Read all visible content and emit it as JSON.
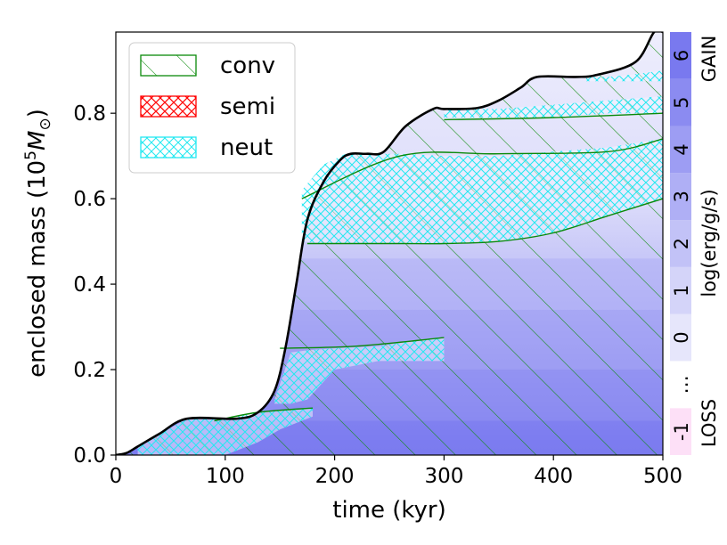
{
  "chart_data": {
    "type": "area",
    "xlabel": "time (kyr)",
    "ylabel_prefix": "enclosed mass (10",
    "ylabel_exp": "5",
    "ylabel_unit": "M",
    "ylabel_sub": "⊙",
    "ylabel_suffix": ")",
    "xlim": [
      0,
      500
    ],
    "ylim": [
      0,
      0.99
    ],
    "x_ticks": [
      0,
      100,
      200,
      300,
      400,
      500
    ],
    "x_tick_labels": [
      "0",
      "100",
      "200",
      "300",
      "400",
      "500"
    ],
    "y_ticks": [
      0.0,
      0.2,
      0.4,
      0.6,
      0.8
    ],
    "y_tick_labels": [
      "0.0",
      "0.2",
      "0.4",
      "0.6",
      "0.8"
    ],
    "legend": {
      "placement": "top-left",
      "entries": [
        {
          "label": "conv",
          "color": "#008000",
          "hatch": "diagonal"
        },
        {
          "label": "semi",
          "color": "#ff0000",
          "hatch": "cross"
        },
        {
          "label": "neut",
          "color": "#00ffff",
          "hatch": "cross"
        }
      ]
    },
    "total_mass_curve": {
      "x": [
        0,
        10,
        20,
        40,
        65,
        110,
        130,
        145,
        155,
        165,
        175,
        190,
        205,
        215,
        230,
        245,
        265,
        290,
        300,
        330,
        350,
        370,
        385,
        420,
        440,
        475,
        492,
        500
      ],
      "y": [
        0,
        0.005,
        0.02,
        0.05,
        0.085,
        0.085,
        0.1,
        0.15,
        0.25,
        0.4,
        0.55,
        0.64,
        0.69,
        0.705,
        0.705,
        0.71,
        0.77,
        0.81,
        0.81,
        0.812,
        0.83,
        0.86,
        0.885,
        0.885,
        0.89,
        0.92,
        0.99,
        0.99
      ]
    },
    "neut_regions": [
      {
        "x": [
          170,
          190,
          210,
          260,
          300,
          350,
          400,
          450,
          500
        ],
        "y_top": [
          0.62,
          0.68,
          0.705,
          0.705,
          0.7,
          0.7,
          0.71,
          0.72,
          0.74
        ],
        "y_bottom": [
          0.5,
          0.495,
          0.495,
          0.495,
          0.495,
          0.5,
          0.52,
          0.56,
          0.6
        ]
      },
      {
        "x": [
          300,
          350,
          400,
          450,
          500
        ],
        "y_top": [
          0.81,
          0.81,
          0.82,
          0.83,
          0.84
        ],
        "y_bottom": [
          0.79,
          0.79,
          0.79,
          0.8,
          0.8
        ]
      },
      {
        "x": [
          430,
          450,
          470,
          500
        ],
        "y_top": [
          0.885,
          0.885,
          0.89,
          0.9
        ],
        "y_bottom": [
          0.875,
          0.875,
          0.875,
          0.875
        ]
      },
      {
        "x": [
          145,
          160,
          175,
          200,
          240,
          280,
          300
        ],
        "y_top": [
          0.13,
          0.24,
          0.245,
          0.25,
          0.255,
          0.27,
          0.275
        ],
        "y_bottom": [
          0.12,
          0.12,
          0.13,
          0.2,
          0.22,
          0.22,
          0.22
        ]
      },
      {
        "x": [
          20,
          40,
          65,
          100,
          130,
          150,
          180
        ],
        "y_top": [
          0.018,
          0.05,
          0.085,
          0.085,
          0.1,
          0.105,
          0.11
        ],
        "y_bottom": [
          0.0,
          0.0,
          0.0,
          0.0,
          0.03,
          0.06,
          0.09
        ]
      }
    ],
    "mixing_boundaries": [
      {
        "x": [
          175,
          220,
          260,
          300,
          350,
          400,
          450,
          500
        ],
        "y": [
          0.495,
          0.495,
          0.495,
          0.495,
          0.5,
          0.52,
          0.56,
          0.6
        ]
      },
      {
        "x": [
          170,
          260,
          350,
          450,
          500
        ],
        "y": [
          0.6,
          0.7,
          0.705,
          0.71,
          0.74
        ]
      },
      {
        "x": [
          300,
          400,
          500
        ],
        "y": [
          0.785,
          0.79,
          0.8
        ]
      },
      {
        "x": [
          150,
          220,
          300
        ],
        "y": [
          0.25,
          0.255,
          0.275
        ]
      },
      {
        "x": [
          90,
          130,
          180
        ],
        "y": [
          0.08,
          0.1,
          0.11
        ]
      }
    ],
    "colorbar": {
      "levels": [
        "-1",
        "…",
        "0",
        "1",
        "2",
        "3",
        "4",
        "5",
        "6"
      ],
      "colors": [
        "#fde0f7",
        "#ffffff",
        "#e6e6fb",
        "#d4d4f9",
        "#c2c2f7",
        "#afafF5",
        "#9d9df3",
        "#8b8bf1",
        "#7979ef"
      ],
      "label": "log(erg/g/s)",
      "top_label": "GAIN",
      "bottom_label": "LOSS"
    }
  }
}
